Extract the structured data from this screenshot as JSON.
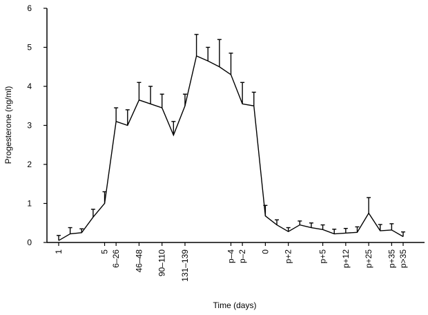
{
  "chart_data": {
    "type": "line",
    "xlabel": "Time (days)",
    "ylabel": "Progesterone (ng/ml)",
    "categories": [
      "1",
      null,
      null,
      null,
      "5",
      "6–26",
      null,
      "46–48",
      null,
      "90–110",
      null,
      "131–139",
      null,
      null,
      null,
      "p–4",
      "p–2",
      null,
      "0",
      null,
      "p+2",
      null,
      null,
      "p+5",
      null,
      "p+12",
      null,
      "p+25",
      null,
      "p+35",
      "p>35"
    ],
    "values": [
      0.05,
      0.22,
      0.25,
      0.65,
      1.0,
      3.1,
      3.0,
      3.65,
      3.55,
      3.45,
      2.75,
      3.5,
      4.78,
      4.65,
      4.5,
      4.3,
      3.55,
      3.5,
      0.68,
      0.45,
      0.28,
      0.45,
      0.38,
      0.33,
      0.22,
      0.24,
      0.26,
      0.75,
      0.3,
      0.32,
      0.15
    ],
    "errors": [
      0.13,
      0.16,
      0.1,
      0.2,
      0.3,
      0.35,
      0.4,
      0.45,
      0.45,
      0.35,
      0.35,
      0.3,
      0.55,
      0.35,
      0.7,
      0.55,
      0.55,
      0.35,
      0.27,
      0.13,
      0.1,
      0.1,
      0.12,
      0.12,
      0.12,
      0.12,
      0.14,
      0.4,
      0.16,
      0.16,
      0.12
    ],
    "color": "#000000",
    "ylim": [
      0,
      6
    ],
    "yticks": [
      0,
      1,
      2,
      3,
      4,
      5,
      6
    ]
  }
}
